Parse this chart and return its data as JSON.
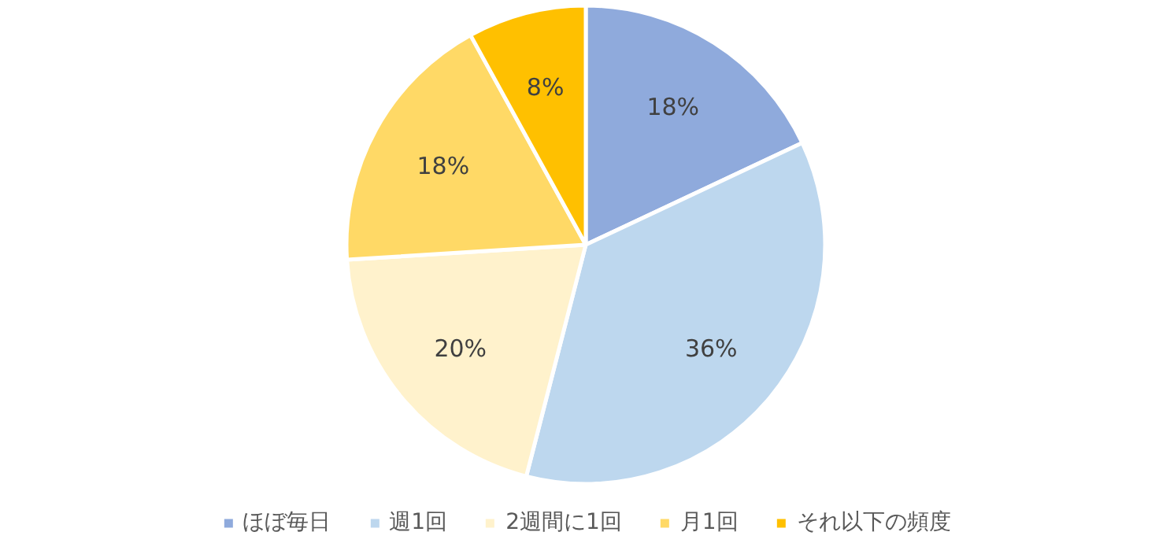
{
  "chart_data": {
    "type": "pie",
    "categories": [
      "ほぼ毎日",
      "週1回",
      "2週間に1回",
      "月1回",
      "それ以下の頻度"
    ],
    "values": [
      18,
      36,
      20,
      18,
      8
    ],
    "colors": [
      "#8faadc",
      "#bdd7ee",
      "#fff2cc",
      "#ffd966",
      "#ffc000"
    ],
    "value_labels": [
      "18%",
      "36%",
      "20%",
      "18%",
      "8%"
    ],
    "legend": "bottom"
  }
}
